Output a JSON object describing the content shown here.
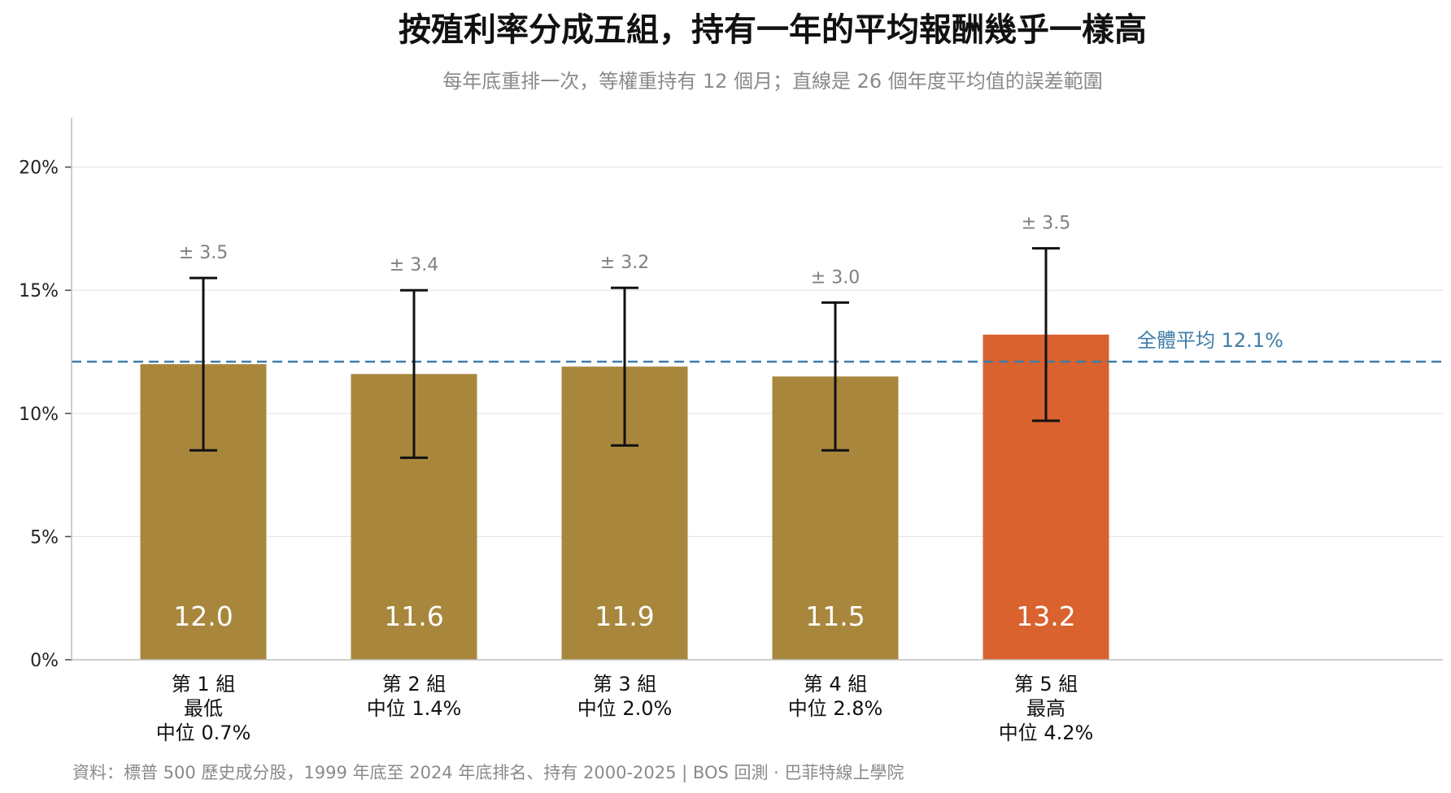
{
  "chart_data": {
    "type": "bar",
    "title": "按殖利率分成五組，持有一年的平均報酬幾乎一樣高",
    "subtitle": "每年底重排一次，等權重持有 12 個月；直線是 26 個年度平均值的誤差範圍",
    "categories": [
      [
        "第 1 組",
        "最低",
        "中位 0.7%"
      ],
      [
        "第 2 組",
        "中位 1.4%"
      ],
      [
        "第 3 組",
        "中位 2.0%"
      ],
      [
        "第 4 組",
        "中位 2.8%"
      ],
      [
        "第 5 組",
        "最高",
        "中位 4.2%"
      ]
    ],
    "values": [
      12.0,
      11.6,
      11.9,
      11.5,
      13.2
    ],
    "value_labels": [
      "12.0",
      "11.6",
      "11.9",
      "11.5",
      "13.2"
    ],
    "errors": [
      3.5,
      3.4,
      3.2,
      3.0,
      3.5
    ],
    "error_labels": [
      "± 3.5",
      "± 3.4",
      "± 3.2",
      "± 3.0",
      "± 3.5"
    ],
    "ylim": [
      0,
      22
    ],
    "yticks": [
      0,
      5,
      10,
      15,
      20
    ],
    "ytick_labels": [
      "0%",
      "5%",
      "10%",
      "15%",
      "20%"
    ],
    "xlabel": "",
    "ylabel": "",
    "reference_line": {
      "value": 12.1,
      "label": "全體平均 12.1%"
    },
    "grid": true,
    "colors": {
      "bar": "#a8873d",
      "highlight_bar": "#d9622f",
      "reference": "#3f7ca8",
      "error_bar": "#111111"
    },
    "highlight_index": 4
  },
  "source": "資料：標普 500 歷史成分股，1999 年底至 2024 年底排名、持有 2000-2025 | BOS 回測 ·  巴菲特線上學院"
}
